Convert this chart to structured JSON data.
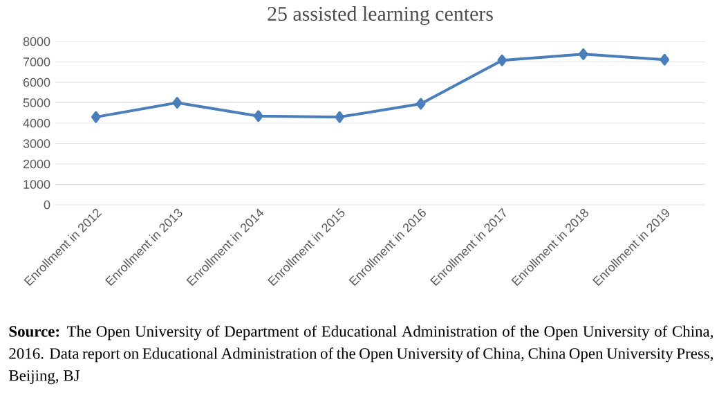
{
  "chart_data": {
    "type": "line",
    "title": "25 assisted learning centers",
    "categories": [
      "Enrollment in 2012",
      "Enrollment in 2013",
      "Enrollment in 2014",
      "Enrollment in 2015",
      "Enrollment in 2016",
      "Enrollment in 2017",
      "Enrollment in 2018",
      "Enrollment in 2019"
    ],
    "series": [
      {
        "color": "#4a7ebb",
        "values": [
          4300,
          5000,
          4350,
          4300,
          4950,
          7080,
          7380,
          7110
        ]
      }
    ],
    "ylim": [
      0,
      8000
    ],
    "yticks": [
      0,
      1000,
      2000,
      3000,
      4000,
      5000,
      6000,
      7000,
      8000
    ],
    "grid": "y",
    "marker": "diamond",
    "line_style": "solid",
    "annotations": [
      "**Source:** The Open University of Department of Educational Administration of the Open University of China, 2016. Data report on Educational Administration of the Open University of China, China Open University Press, Beijing, BJ"
    ]
  }
}
